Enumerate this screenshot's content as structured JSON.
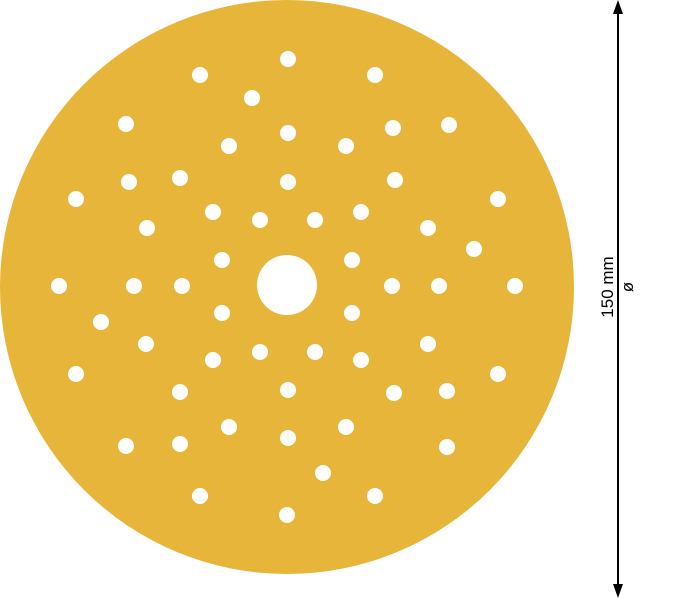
{
  "product": {
    "color": "#e8b53b",
    "hole_color": "#ffffff"
  },
  "dimension": {
    "value": "150 mm",
    "symbol": "ø",
    "line_color": "#000000"
  }
}
